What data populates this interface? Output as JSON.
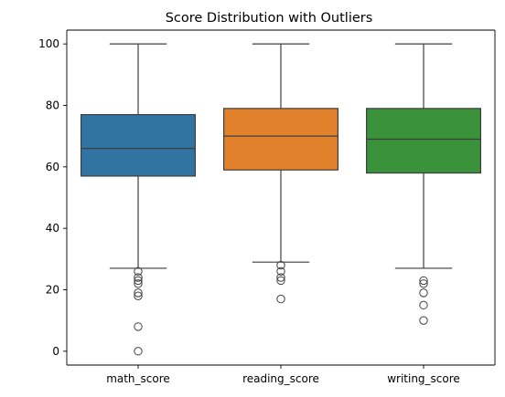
{
  "chart_data": {
    "type": "box",
    "title": "Score Distribution with Outliers",
    "xlabel": "",
    "ylabel": "",
    "ylim": [
      -4.5,
      104.5
    ],
    "yticks": [
      0,
      20,
      40,
      60,
      80,
      100
    ],
    "grid": false,
    "categories": [
      "math_score",
      "reading_score",
      "writing_score"
    ],
    "series": [
      {
        "category": "math_score",
        "color": "#3274a1",
        "whisker_low": 27,
        "q1": 57,
        "median": 66,
        "q3": 77,
        "whisker_high": 100,
        "outliers": [
          26,
          24,
          23,
          22,
          19,
          18,
          8,
          0
        ]
      },
      {
        "category": "reading_score",
        "color": "#e1812c",
        "whisker_low": 29,
        "q1": 59,
        "median": 70,
        "q3": 79,
        "whisker_high": 100,
        "outliers": [
          28,
          26,
          24,
          23,
          17
        ]
      },
      {
        "category": "writing_score",
        "color": "#3a923a",
        "whisker_low": 27,
        "q1": 58,
        "median": 69,
        "q3": 79,
        "whisker_high": 100,
        "outliers": [
          23,
          22,
          19,
          15,
          10
        ]
      }
    ]
  }
}
